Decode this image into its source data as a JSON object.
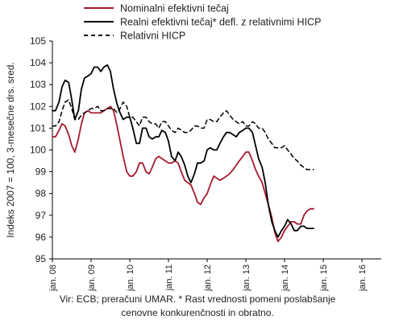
{
  "chart_data": {
    "type": "line",
    "title": "",
    "ylabel": "Indeks 2007 = 100, 3-mesečne drs. sred.",
    "xlabel": "",
    "ylim": [
      95,
      105
    ],
    "yticks": [
      95,
      96,
      97,
      98,
      99,
      100,
      101,
      102,
      103,
      104,
      105
    ],
    "xlim": [
      2008,
      2016.5
    ],
    "xticks": [
      {
        "label": "jan. 08",
        "x": 2008
      },
      {
        "label": "jan. 09",
        "x": 2009
      },
      {
        "label": "jan. 10",
        "x": 2010
      },
      {
        "label": "jan. 11",
        "x": 2011
      },
      {
        "label": "jan. 12",
        "x": 2012
      },
      {
        "label": "jan. 13",
        "x": 2013
      },
      {
        "label": "jan. 14",
        "x": 2014
      },
      {
        "label": "jan. 15",
        "x": 2015
      },
      {
        "label": "jan. 16",
        "x": 2016
      }
    ],
    "grid": false,
    "legend_position": "top",
    "series": [
      {
        "name": "Nominalni efektivni tečaj",
        "color": "#a6192e",
        "style": "solid",
        "points": [
          [
            2008.0,
            100.6
          ],
          [
            2008.08,
            100.6
          ],
          [
            2008.17,
            100.9
          ],
          [
            2008.25,
            101.2
          ],
          [
            2008.33,
            101.1
          ],
          [
            2008.42,
            100.7
          ],
          [
            2008.5,
            100.2
          ],
          [
            2008.58,
            99.9
          ],
          [
            2008.67,
            100.5
          ],
          [
            2008.75,
            101.2
          ],
          [
            2008.83,
            101.7
          ],
          [
            2008.92,
            101.8
          ],
          [
            2009.0,
            101.7
          ],
          [
            2009.08,
            101.7
          ],
          [
            2009.17,
            101.7
          ],
          [
            2009.25,
            101.7
          ],
          [
            2009.33,
            101.8
          ],
          [
            2009.42,
            101.9
          ],
          [
            2009.5,
            102.0
          ],
          [
            2009.58,
            101.8
          ],
          [
            2009.67,
            101.1
          ],
          [
            2009.75,
            100.4
          ],
          [
            2009.83,
            99.7
          ],
          [
            2009.92,
            99.0
          ],
          [
            2010.0,
            98.8
          ],
          [
            2010.08,
            98.8
          ],
          [
            2010.17,
            99.0
          ],
          [
            2010.25,
            99.4
          ],
          [
            2010.33,
            99.4
          ],
          [
            2010.42,
            99.0
          ],
          [
            2010.5,
            98.9
          ],
          [
            2010.58,
            99.2
          ],
          [
            2010.67,
            99.6
          ],
          [
            2010.75,
            99.7
          ],
          [
            2010.83,
            99.6
          ],
          [
            2010.92,
            99.5
          ],
          [
            2011.0,
            99.4
          ],
          [
            2011.08,
            99.4
          ],
          [
            2011.17,
            99.5
          ],
          [
            2011.25,
            99.4
          ],
          [
            2011.33,
            99.0
          ],
          [
            2011.42,
            98.6
          ],
          [
            2011.5,
            98.5
          ],
          [
            2011.58,
            98.4
          ],
          [
            2011.67,
            98.0
          ],
          [
            2011.75,
            97.6
          ],
          [
            2011.83,
            97.5
          ],
          [
            2011.92,
            97.8
          ],
          [
            2012.0,
            98.0
          ],
          [
            2012.08,
            98.4
          ],
          [
            2012.17,
            98.8
          ],
          [
            2012.25,
            98.7
          ],
          [
            2012.33,
            98.6
          ],
          [
            2012.42,
            98.7
          ],
          [
            2012.5,
            98.8
          ],
          [
            2012.58,
            98.9
          ],
          [
            2012.67,
            99.1
          ],
          [
            2012.75,
            99.3
          ],
          [
            2012.83,
            99.5
          ],
          [
            2012.92,
            99.7
          ],
          [
            2013.0,
            99.9
          ],
          [
            2013.08,
            99.9
          ],
          [
            2013.17,
            99.5
          ],
          [
            2013.25,
            99.1
          ],
          [
            2013.33,
            98.8
          ],
          [
            2013.42,
            98.5
          ],
          [
            2013.5,
            98.0
          ],
          [
            2013.58,
            97.5
          ],
          [
            2013.67,
            96.9
          ],
          [
            2013.75,
            96.2
          ],
          [
            2013.83,
            95.8
          ],
          [
            2013.92,
            96.0
          ],
          [
            2014.0,
            96.3
          ],
          [
            2014.08,
            96.5
          ],
          [
            2014.17,
            96.7
          ],
          [
            2014.25,
            96.7
          ],
          [
            2014.33,
            96.6
          ],
          [
            2014.42,
            96.6
          ],
          [
            2014.5,
            97.0
          ],
          [
            2014.58,
            97.2
          ],
          [
            2014.67,
            97.3
          ],
          [
            2014.75,
            97.3
          ]
        ]
      },
      {
        "name": "Realni efektivni tečaj* defl. z relativnimi HICP",
        "color": "#000000",
        "style": "solid",
        "points": [
          [
            2008.0,
            101.8
          ],
          [
            2008.08,
            101.8
          ],
          [
            2008.17,
            102.2
          ],
          [
            2008.25,
            102.9
          ],
          [
            2008.33,
            103.2
          ],
          [
            2008.42,
            103.1
          ],
          [
            2008.5,
            102.3
          ],
          [
            2008.58,
            101.4
          ],
          [
            2008.67,
            101.8
          ],
          [
            2008.75,
            102.8
          ],
          [
            2008.83,
            103.3
          ],
          [
            2008.92,
            103.4
          ],
          [
            2009.0,
            103.5
          ],
          [
            2009.08,
            103.8
          ],
          [
            2009.17,
            103.8
          ],
          [
            2009.25,
            103.6
          ],
          [
            2009.33,
            103.8
          ],
          [
            2009.42,
            103.9
          ],
          [
            2009.5,
            103.6
          ],
          [
            2009.58,
            102.8
          ],
          [
            2009.67,
            102.1
          ],
          [
            2009.75,
            101.7
          ],
          [
            2009.83,
            101.4
          ],
          [
            2009.92,
            101.5
          ],
          [
            2010.0,
            101.5
          ],
          [
            2010.08,
            101.0
          ],
          [
            2010.17,
            100.3
          ],
          [
            2010.25,
            100.3
          ],
          [
            2010.33,
            101.0
          ],
          [
            2010.42,
            101.0
          ],
          [
            2010.5,
            100.6
          ],
          [
            2010.58,
            100.5
          ],
          [
            2010.67,
            100.6
          ],
          [
            2010.75,
            100.6
          ],
          [
            2010.83,
            100.9
          ],
          [
            2010.92,
            100.8
          ],
          [
            2011.0,
            100.4
          ],
          [
            2011.08,
            99.7
          ],
          [
            2011.17,
            99.5
          ],
          [
            2011.25,
            99.9
          ],
          [
            2011.33,
            99.7
          ],
          [
            2011.42,
            99.3
          ],
          [
            2011.5,
            98.8
          ],
          [
            2011.58,
            98.5
          ],
          [
            2011.67,
            98.9
          ],
          [
            2011.75,
            99.4
          ],
          [
            2011.83,
            99.4
          ],
          [
            2011.92,
            99.5
          ],
          [
            2012.0,
            100.0
          ],
          [
            2012.08,
            100.1
          ],
          [
            2012.17,
            100.0
          ],
          [
            2012.25,
            100.0
          ],
          [
            2012.33,
            100.3
          ],
          [
            2012.42,
            100.6
          ],
          [
            2012.5,
            100.8
          ],
          [
            2012.58,
            100.8
          ],
          [
            2012.67,
            100.7
          ],
          [
            2012.75,
            100.6
          ],
          [
            2012.83,
            100.8
          ],
          [
            2012.92,
            100.9
          ],
          [
            2013.0,
            101.0
          ],
          [
            2013.08,
            101.0
          ],
          [
            2013.17,
            100.8
          ],
          [
            2013.25,
            100.2
          ],
          [
            2013.33,
            99.6
          ],
          [
            2013.42,
            99.2
          ],
          [
            2013.5,
            98.5
          ],
          [
            2013.58,
            97.5
          ],
          [
            2013.67,
            96.7
          ],
          [
            2013.75,
            96.3
          ],
          [
            2013.83,
            96.0
          ],
          [
            2013.92,
            96.3
          ],
          [
            2014.0,
            96.5
          ],
          [
            2014.08,
            96.8
          ],
          [
            2014.17,
            96.6
          ],
          [
            2014.25,
            96.3
          ],
          [
            2014.33,
            96.3
          ],
          [
            2014.42,
            96.5
          ],
          [
            2014.5,
            96.5
          ],
          [
            2014.58,
            96.4
          ],
          [
            2014.67,
            96.4
          ],
          [
            2014.75,
            96.4
          ]
        ]
      },
      {
        "name": "Relativni HICP",
        "color": "#000000",
        "style": "dashed",
        "points": [
          [
            2008.0,
            101.1
          ],
          [
            2008.08,
            101.1
          ],
          [
            2008.17,
            101.3
          ],
          [
            2008.25,
            101.8
          ],
          [
            2008.33,
            102.2
          ],
          [
            2008.42,
            102.3
          ],
          [
            2008.5,
            101.9
          ],
          [
            2008.58,
            101.4
          ],
          [
            2008.67,
            101.4
          ],
          [
            2008.75,
            101.6
          ],
          [
            2008.83,
            101.7
          ],
          [
            2008.92,
            101.8
          ],
          [
            2009.0,
            101.9
          ],
          [
            2009.08,
            101.9
          ],
          [
            2009.17,
            102.0
          ],
          [
            2009.25,
            101.8
          ],
          [
            2009.33,
            101.8
          ],
          [
            2009.42,
            101.9
          ],
          [
            2009.5,
            101.9
          ],
          [
            2009.58,
            101.9
          ],
          [
            2009.67,
            101.7
          ],
          [
            2009.75,
            101.9
          ],
          [
            2009.83,
            102.2
          ],
          [
            2009.92,
            102.0
          ],
          [
            2010.0,
            101.5
          ],
          [
            2010.08,
            101.5
          ],
          [
            2010.17,
            101.3
          ],
          [
            2010.25,
            101.1
          ],
          [
            2010.33,
            101.5
          ],
          [
            2010.42,
            101.5
          ],
          [
            2010.5,
            101.3
          ],
          [
            2010.58,
            101.2
          ],
          [
            2010.67,
            101.2
          ],
          [
            2010.75,
            101.0
          ],
          [
            2010.83,
            101.3
          ],
          [
            2010.92,
            101.3
          ],
          [
            2011.0,
            101.1
          ],
          [
            2011.08,
            100.9
          ],
          [
            2011.17,
            100.8
          ],
          [
            2011.25,
            101.0
          ],
          [
            2011.33,
            100.9
          ],
          [
            2011.42,
            100.8
          ],
          [
            2011.5,
            100.8
          ],
          [
            2011.58,
            100.9
          ],
          [
            2011.67,
            101.1
          ],
          [
            2011.75,
            101.1
          ],
          [
            2011.83,
            101.0
          ],
          [
            2011.92,
            101.0
          ],
          [
            2012.0,
            101.4
          ],
          [
            2012.08,
            101.4
          ],
          [
            2012.17,
            101.3
          ],
          [
            2012.25,
            101.3
          ],
          [
            2012.33,
            101.5
          ],
          [
            2012.42,
            101.7
          ],
          [
            2012.5,
            101.8
          ],
          [
            2012.58,
            101.6
          ],
          [
            2012.67,
            101.4
          ],
          [
            2012.75,
            101.3
          ],
          [
            2012.83,
            101.2
          ],
          [
            2012.92,
            101.3
          ],
          [
            2013.0,
            101.1
          ],
          [
            2013.08,
            101.1
          ],
          [
            2013.17,
            101.3
          ],
          [
            2013.25,
            101.2
          ],
          [
            2013.33,
            101.0
          ],
          [
            2013.42,
            101.0
          ],
          [
            2013.5,
            100.8
          ],
          [
            2013.58,
            100.5
          ],
          [
            2013.67,
            100.3
          ],
          [
            2013.75,
            100.1
          ],
          [
            2013.83,
            100.1
          ],
          [
            2013.92,
            100.1
          ],
          [
            2014.0,
            100.2
          ],
          [
            2014.08,
            100.0
          ],
          [
            2014.17,
            99.8
          ],
          [
            2014.25,
            99.6
          ],
          [
            2014.33,
            99.5
          ],
          [
            2014.42,
            99.3
          ],
          [
            2014.5,
            99.2
          ],
          [
            2014.58,
            99.1
          ],
          [
            2014.67,
            99.1
          ],
          [
            2014.75,
            99.1
          ]
        ]
      }
    ],
    "caption_lines": [
      "Vir: ECB; preračuni UMAR. * Rast vrednosti pomeni poslabšanje",
      "cenovne konkurenčnosti in obratno."
    ]
  }
}
